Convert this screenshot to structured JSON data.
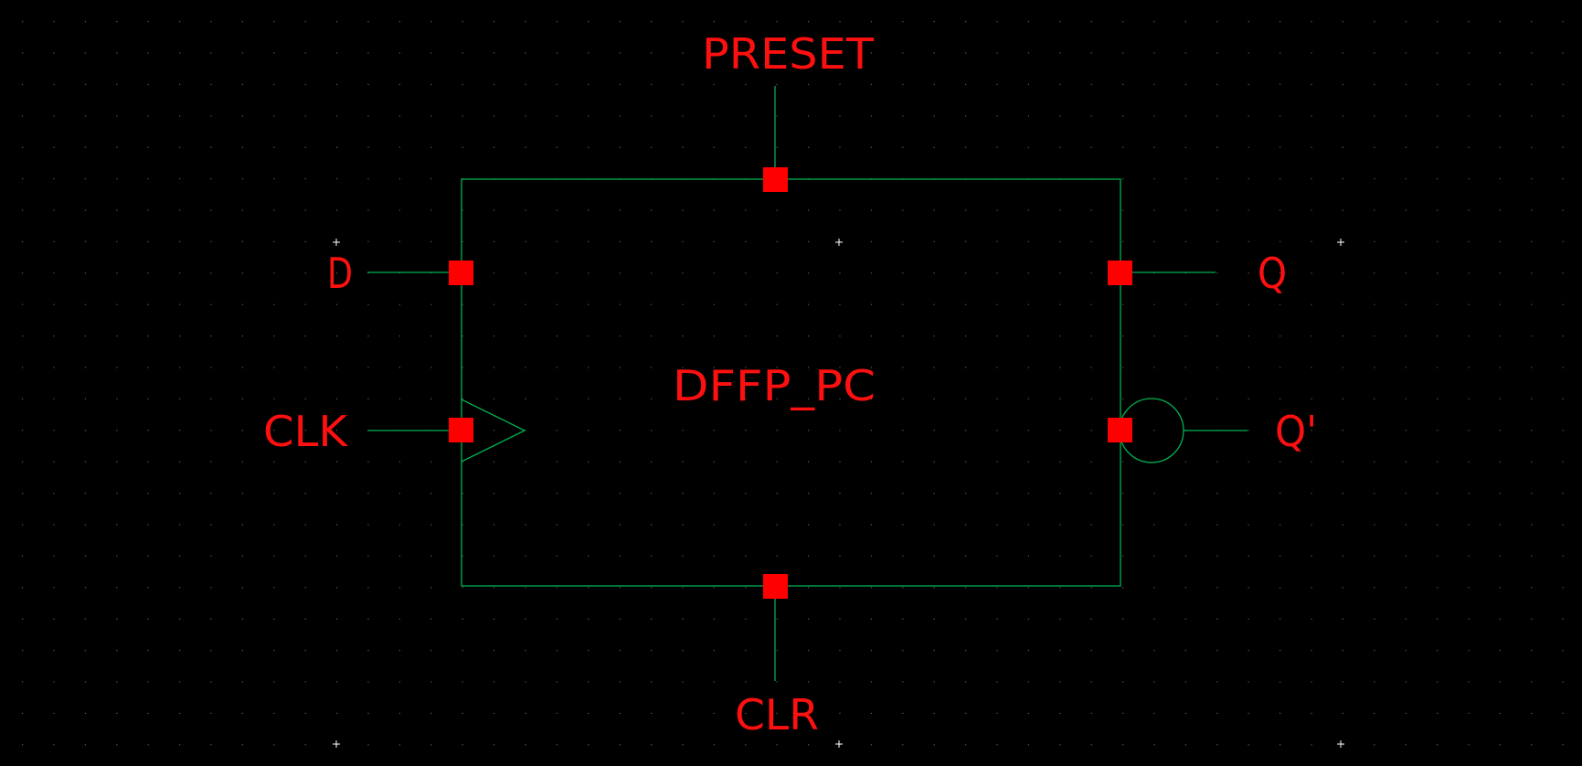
{
  "schematic": {
    "cell_name": "DFFP_PC",
    "pins": {
      "preset": "PRESET",
      "d": "D",
      "clk": "CLK",
      "clr": "CLR",
      "q": "Q",
      "q_bar": "Q'"
    }
  },
  "colors": {
    "background": "#000000",
    "wire": "#00b050",
    "pin": "#ff0000",
    "label": "#ff1010",
    "grid_dot": "#5a5a5a",
    "grid_cross": "#ffffff"
  }
}
